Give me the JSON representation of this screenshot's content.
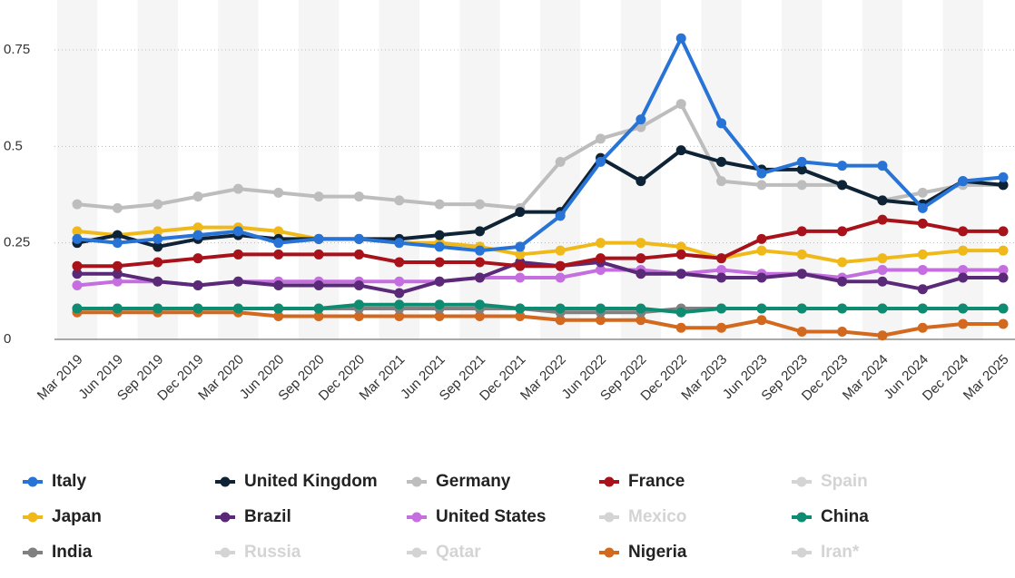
{
  "chart_data": {
    "type": "line",
    "categories": [
      "Mar 2019",
      "Jun 2019",
      "Sep 2019",
      "Dec 2019",
      "Mar 2020",
      "Jun 2020",
      "Sep 2020",
      "Dec 2020",
      "Mar 2021",
      "Jun 2021",
      "Sep 2021",
      "Dec 2021",
      "Mar 2022",
      "Jun 2022",
      "Sep 2022",
      "Dec 2022",
      "Mar 2023",
      "Jun 2023",
      "Sep 2023",
      "Dec 2023",
      "Mar 2024",
      "Jun 2024",
      "Dec 2024",
      "Mar 2025"
    ],
    "ylim": [
      0,
      0.85
    ],
    "yticks": [
      0,
      0.25,
      0.5,
      0.75
    ],
    "grid": true,
    "series": [
      {
        "name": "Italy",
        "color": "#2873d6",
        "values": [
          0.26,
          0.25,
          0.26,
          0.27,
          0.28,
          0.25,
          0.26,
          0.26,
          0.25,
          0.24,
          0.23,
          0.24,
          0.32,
          0.46,
          0.57,
          0.78,
          0.56,
          0.43,
          0.46,
          0.45,
          0.45,
          0.34,
          0.41,
          0.42
        ]
      },
      {
        "name": "United Kingdom",
        "color": "#0f2337",
        "values": [
          0.25,
          0.27,
          0.24,
          0.26,
          0.27,
          0.26,
          0.26,
          0.26,
          0.26,
          0.27,
          0.28,
          0.33,
          0.33,
          0.47,
          0.41,
          0.49,
          0.46,
          0.44,
          0.44,
          0.4,
          0.36,
          0.35,
          0.41,
          0.4
        ]
      },
      {
        "name": "Germany",
        "color": "#bdbdbd",
        "values": [
          0.35,
          0.34,
          0.35,
          0.37,
          0.39,
          0.38,
          0.37,
          0.37,
          0.36,
          0.35,
          0.35,
          0.34,
          0.46,
          0.52,
          0.55,
          0.61,
          0.41,
          0.4,
          0.4,
          0.4,
          0.36,
          0.38,
          0.4,
          0.4
        ]
      },
      {
        "name": "France",
        "color": "#a8131b",
        "values": [
          0.19,
          0.19,
          0.2,
          0.21,
          0.22,
          0.22,
          0.22,
          0.22,
          0.2,
          0.2,
          0.2,
          0.19,
          0.19,
          0.21,
          0.21,
          0.22,
          0.21,
          0.26,
          0.28,
          0.28,
          0.31,
          0.3,
          0.28,
          0.28
        ]
      },
      {
        "name": "Spain",
        "color": "#d4d4d4",
        "visible": false
      },
      {
        "name": "Japan",
        "color": "#f0b91a",
        "values": [
          0.28,
          0.27,
          0.28,
          0.29,
          0.29,
          0.28,
          0.26,
          0.26,
          0.25,
          0.25,
          0.24,
          0.22,
          0.23,
          0.25,
          0.25,
          0.24,
          0.21,
          0.23,
          0.22,
          0.2,
          0.21,
          0.22,
          0.23,
          0.23
        ]
      },
      {
        "name": "Brazil",
        "color": "#5a2a78",
        "values": [
          0.17,
          0.17,
          0.15,
          0.14,
          0.15,
          0.14,
          0.14,
          0.14,
          0.12,
          0.15,
          0.16,
          0.2,
          0.19,
          0.2,
          0.17,
          0.17,
          0.16,
          0.16,
          0.17,
          0.15,
          0.15,
          0.13,
          0.16,
          0.16
        ]
      },
      {
        "name": "United States",
        "color": "#c56ee0",
        "values": [
          0.14,
          0.15,
          0.15,
          0.14,
          0.15,
          0.15,
          0.15,
          0.15,
          0.15,
          0.15,
          0.16,
          0.16,
          0.16,
          0.18,
          0.18,
          0.17,
          0.18,
          0.17,
          0.17,
          0.16,
          0.18,
          0.18,
          0.18,
          0.18
        ]
      },
      {
        "name": "Mexico",
        "color": "#d4d4d4",
        "visible": false
      },
      {
        "name": "China",
        "color": "#0e8c72",
        "values": [
          0.08,
          0.08,
          0.08,
          0.08,
          0.08,
          0.08,
          0.08,
          0.09,
          0.09,
          0.09,
          0.09,
          0.08,
          0.08,
          0.08,
          0.08,
          0.07,
          0.08,
          0.08,
          0.08,
          0.08,
          0.08,
          0.08,
          0.08,
          0.08
        ]
      },
      {
        "name": "India",
        "color": "#808080",
        "values": [
          0.08,
          0.08,
          0.08,
          0.08,
          0.08,
          0.08,
          0.08,
          0.08,
          0.08,
          0.08,
          0.08,
          0.08,
          0.07,
          0.07,
          0.07,
          0.08,
          0.08,
          0.08,
          0.08,
          0.08,
          0.08,
          0.08,
          0.08,
          0.08
        ]
      },
      {
        "name": "Russia",
        "color": "#d4d4d4",
        "visible": false
      },
      {
        "name": "Qatar",
        "color": "#d4d4d4",
        "visible": false
      },
      {
        "name": "Nigeria",
        "color": "#d2691e",
        "values": [
          0.07,
          0.07,
          0.07,
          0.07,
          0.07,
          0.06,
          0.06,
          0.06,
          0.06,
          0.06,
          0.06,
          0.06,
          0.05,
          0.05,
          0.05,
          0.03,
          0.03,
          0.05,
          0.02,
          0.02,
          0.01,
          0.03,
          0.04,
          0.04
        ]
      },
      {
        "name": "Iran*",
        "color": "#d4d4d4",
        "visible": false
      }
    ]
  }
}
